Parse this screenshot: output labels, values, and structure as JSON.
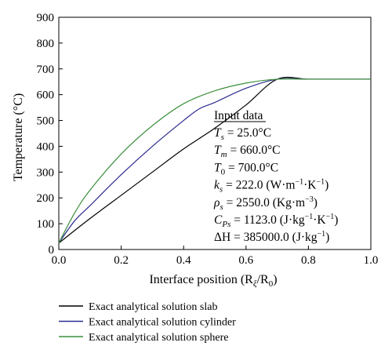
{
  "chart_data": {
    "type": "line",
    "xlabel": "Interface position (R",
    "xlabel_sub1": "ξ",
    "xlabel_mid": "/R",
    "xlabel_sub2": "0",
    "xlabel_end": ")",
    "ylabel": "Temperature (°C)",
    "xlim": [
      0.0,
      1.0
    ],
    "ylim": [
      0,
      900
    ],
    "x_ticks": [
      "0.0",
      "0.2",
      "0.4",
      "0.6",
      "0.8",
      "1.0"
    ],
    "y_ticks": [
      "0",
      "100",
      "200",
      "300",
      "400",
      "500",
      "600",
      "700",
      "800",
      "900"
    ],
    "grid": false,
    "legend_position": "bottom",
    "series": [
      {
        "name": "Exact analytical solution slab",
        "color": "#000000",
        "x": [
          0.0,
          0.1,
          0.2,
          0.3,
          0.4,
          0.5,
          0.6,
          0.7,
          0.8,
          0.9,
          1.0
        ],
        "y": [
          25,
          120,
          210,
          300,
          390,
          470,
          560,
          660,
          660,
          660,
          660
        ]
      },
      {
        "name": "Exact analytical solution cylinder",
        "color": "#2b2a8f",
        "x": [
          0.0,
          0.05,
          0.1,
          0.2,
          0.3,
          0.4,
          0.45,
          0.5,
          0.6,
          0.7,
          0.8,
          0.9,
          1.0
        ],
        "y": [
          25,
          110,
          170,
          290,
          400,
          500,
          545,
          570,
          625,
          660,
          660,
          660,
          660
        ]
      },
      {
        "name": "Exact analytical solution sphere",
        "color": "#3c8f3c",
        "x": [
          0.0,
          0.05,
          0.1,
          0.2,
          0.3,
          0.4,
          0.5,
          0.6,
          0.7,
          0.8,
          0.9,
          1.0
        ],
        "y": [
          25,
          140,
          230,
          370,
          480,
          565,
          615,
          645,
          660,
          660,
          660,
          660
        ]
      }
    ]
  },
  "input_data": {
    "heading": "Input data",
    "lines": [
      {
        "sym": "T",
        "sub": "s",
        "rest": " = 25.0°C"
      },
      {
        "sym": "T",
        "sub": "m",
        "rest": " = 660.0°C"
      },
      {
        "sym": "T",
        "sub": "0",
        "rest": " = 700.0°C"
      },
      {
        "sym": "k",
        "sub": "s",
        "rest": " = 222.0 (W·m",
        "sup1": "−1",
        "mid": "·K",
        "sup2": "−1",
        "end": ")"
      },
      {
        "sym": "ρ",
        "sub": "s",
        "rest": " = 2550.0 (Kg·m",
        "sup1": "−3",
        "mid": "",
        "sup2": "",
        "end": ")"
      },
      {
        "sym": "C",
        "sub": "Ps",
        "rest": " = 1123.0 (J·kg",
        "sup1": "−1",
        "mid": "·K",
        "sup2": "−1",
        "end": ")"
      },
      {
        "sym": "ΔH",
        "sub": "",
        "rest": " = 385000.0 (J·kg",
        "sup1": "−1",
        "mid": "",
        "sup2": "",
        "end": ")"
      }
    ]
  }
}
